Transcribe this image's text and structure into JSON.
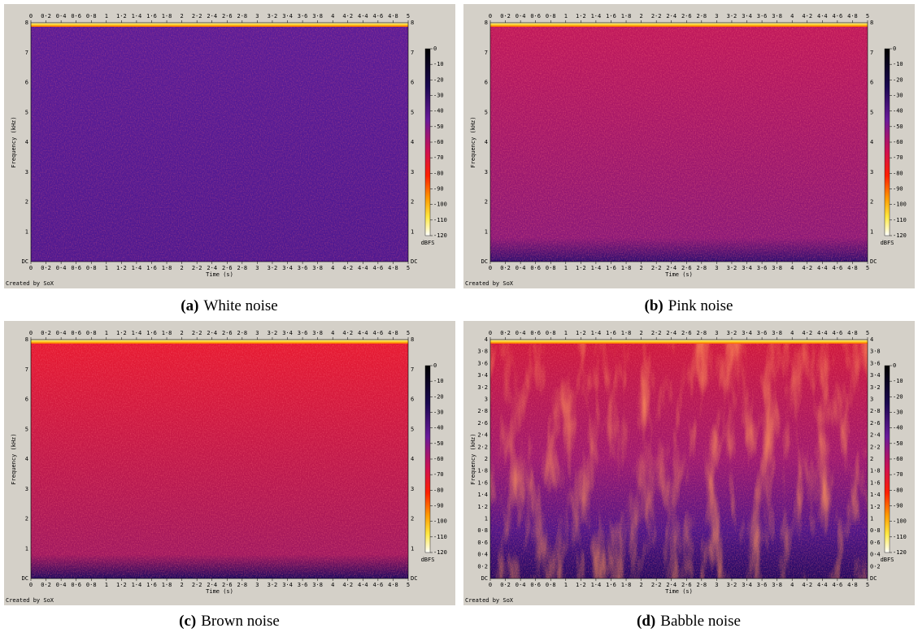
{
  "figure": {
    "panels": [
      {
        "label": "(a)",
        "caption": "White noise",
        "xlabel": "Time (s)",
        "ylabel": "Frequency (kHz)",
        "credit": "Created by SoX",
        "unit": "dBFS",
        "xticks": [
          "0",
          "0·2",
          "0·4",
          "0·6",
          "0·8",
          "1",
          "1·2",
          "1·4",
          "1·6",
          "1·8",
          "2",
          "2·2",
          "2·4",
          "2·6",
          "2·8",
          "3",
          "3·2",
          "3·4",
          "3·6",
          "3·8",
          "4",
          "4·2",
          "4·4",
          "4·6",
          "4·8",
          "5"
        ],
        "yticks": [
          "DC",
          "1",
          "2",
          "3",
          "4",
          "5",
          "6",
          "7",
          "8"
        ],
        "cticks": [
          "0",
          "-10",
          "-20",
          "-30",
          "-40",
          "-50",
          "-60",
          "-70",
          "-80",
          "-90",
          "-100",
          "-110",
          "-120"
        ]
      },
      {
        "label": "(b)",
        "caption": "Pink noise",
        "xlabel": "Time (s)",
        "ylabel": "Frequency (kHz)",
        "credit": "Created by SoX",
        "unit": "dBFS",
        "xticks": [
          "0",
          "0·2",
          "0·4",
          "0·6",
          "0·8",
          "1",
          "1·2",
          "1·4",
          "1·6",
          "1·8",
          "2",
          "2·2",
          "2·4",
          "2·6",
          "2·8",
          "3",
          "3·2",
          "3·4",
          "3·6",
          "3·8",
          "4",
          "4·2",
          "4·4",
          "4·6",
          "4·8",
          "5"
        ],
        "yticks": [
          "DC",
          "1",
          "2",
          "3",
          "4",
          "5",
          "6",
          "7",
          "8"
        ],
        "cticks": [
          "0",
          "-10",
          "-20",
          "-30",
          "-40",
          "-50",
          "-60",
          "-70",
          "-80",
          "-90",
          "-100",
          "-110",
          "-120"
        ]
      },
      {
        "label": "(c)",
        "caption": "Brown noise",
        "xlabel": "Time (s)",
        "ylabel": "Frequency (kHz)",
        "credit": "Created by SoX",
        "unit": "dBFS",
        "xticks": [
          "0",
          "0·2",
          "0·4",
          "0·6",
          "0·8",
          "1",
          "1·2",
          "1·4",
          "1·6",
          "1·8",
          "2",
          "2·2",
          "2·4",
          "2·6",
          "2·8",
          "3",
          "3·2",
          "3·4",
          "3·6",
          "3·8",
          "4",
          "4·2",
          "4·4",
          "4·6",
          "4·8",
          "5"
        ],
        "yticks": [
          "DC",
          "1",
          "2",
          "3",
          "4",
          "5",
          "6",
          "7",
          "8"
        ],
        "cticks": [
          "0",
          "-10",
          "-20",
          "-30",
          "-40",
          "-50",
          "-60",
          "-70",
          "-80",
          "-90",
          "-100",
          "-110",
          "-120"
        ]
      },
      {
        "label": "(d)",
        "caption": "Babble noise",
        "xlabel": "Time (s)",
        "ylabel": "Frequency (kHz)",
        "credit": "Created by SoX",
        "unit": "dBFS",
        "xticks": [
          "0",
          "0·2",
          "0·4",
          "0·6",
          "0·8",
          "1",
          "1·2",
          "1·4",
          "1·6",
          "1·8",
          "2",
          "2·2",
          "2·4",
          "2·6",
          "2·8",
          "3",
          "3·2",
          "3·4",
          "3·6",
          "3·8",
          "4",
          "4·2",
          "4·4",
          "4·6",
          "4·8",
          "5"
        ],
        "yticks": [
          "DC",
          "0·2",
          "0·4",
          "0·6",
          "0·8",
          "1",
          "1·2",
          "1·4",
          "1·6",
          "1·8",
          "2",
          "2·2",
          "2·4",
          "2·6",
          "2·8",
          "3",
          "3·2",
          "3·4",
          "3·6",
          "3·8",
          "4"
        ],
        "cticks": [
          "0",
          "-10",
          "-20",
          "-30",
          "-40",
          "-50",
          "-60",
          "-70",
          "-80",
          "-90",
          "-100",
          "-110",
          "-120"
        ]
      }
    ]
  }
}
